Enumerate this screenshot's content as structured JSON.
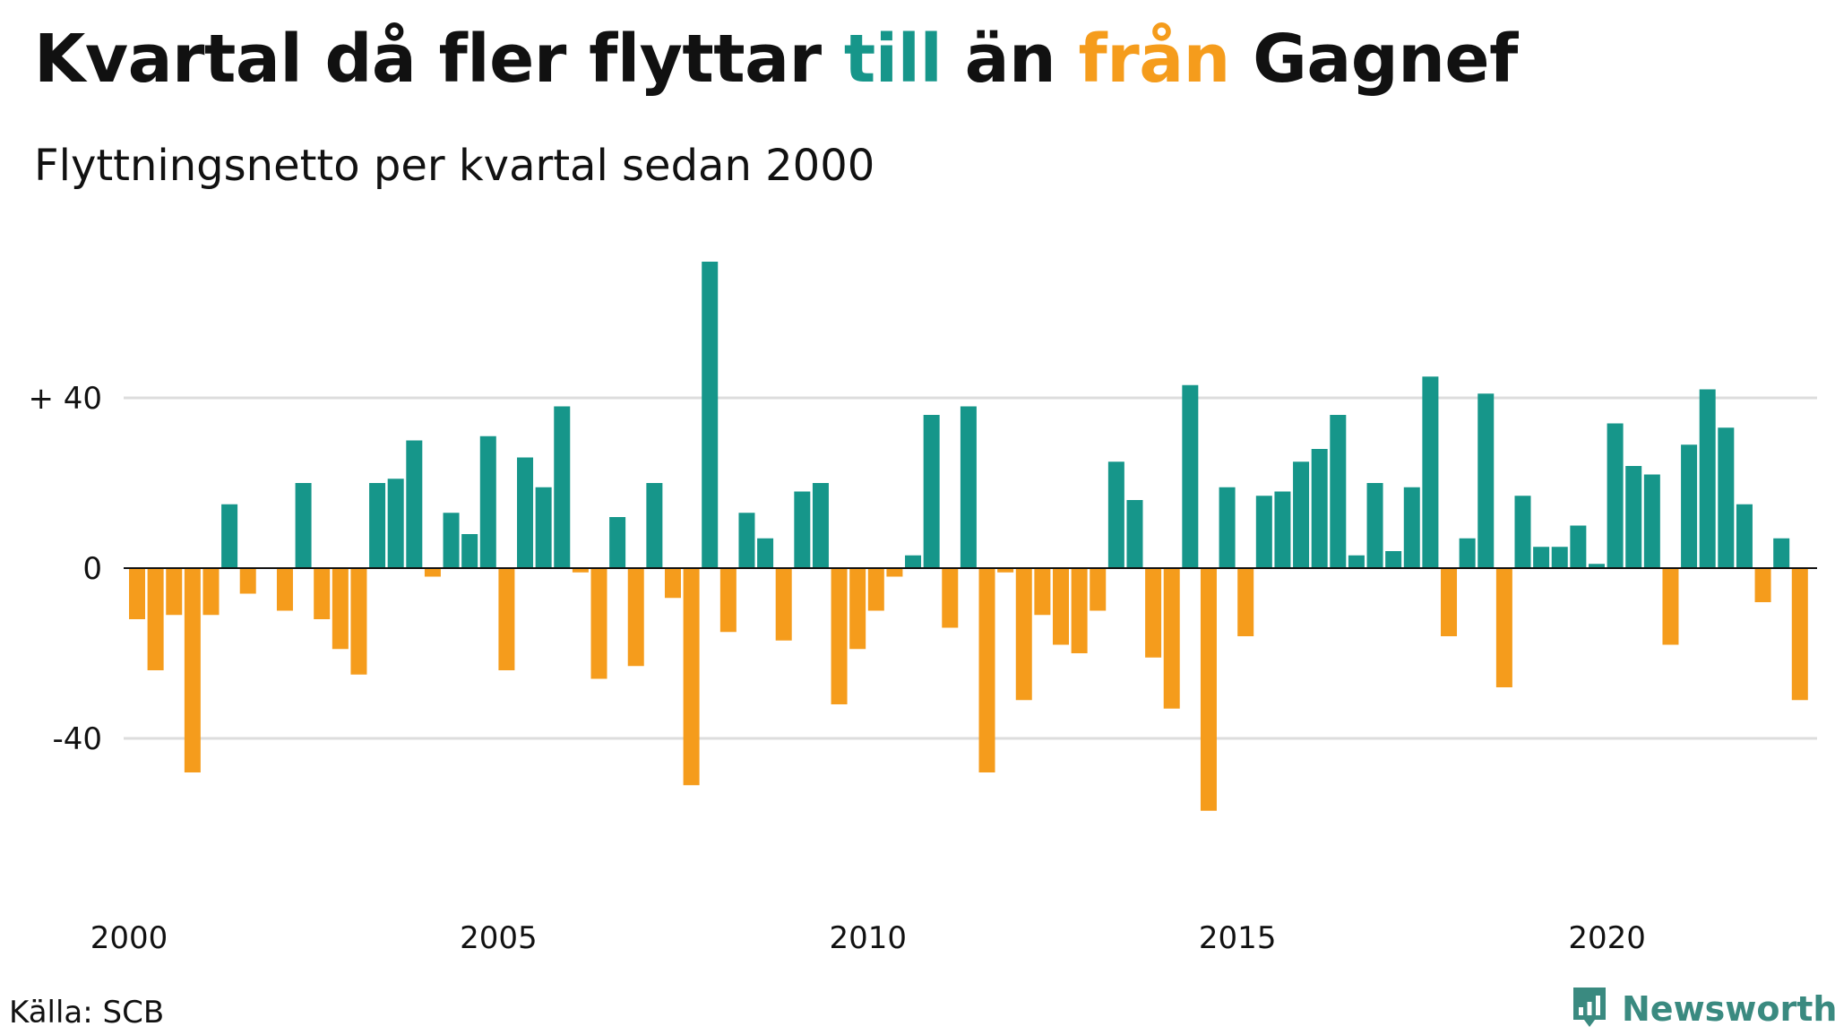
{
  "title": {
    "part1": "Kvartal då fler flyttar",
    "word_to": "till",
    "part2": "än",
    "word_from": "från",
    "part3": "Gagnef"
  },
  "subtitle": "Flyttningsnetto per kvartal sedan 2000",
  "source": "Källa: SCB",
  "brand": "Newsworthy",
  "colors": {
    "positive": "#16968a",
    "negative": "#f59c1c",
    "grid": "#dddddd",
    "axis": "#111111",
    "brand": "#3a8a80"
  },
  "chart_data": {
    "type": "bar",
    "title": "Kvartal då fler flyttar till än från Gagnef",
    "subtitle": "Flyttningsnetto per kvartal sedan 2000",
    "xlabel": "",
    "ylabel": "",
    "ylim": [
      -65,
      75
    ],
    "grid": true,
    "y_ticks": [
      {
        "value": 40,
        "label": "+ 40"
      },
      {
        "value": 0,
        "label": "0"
      },
      {
        "value": -40,
        "label": "-40"
      }
    ],
    "x_ticks": [
      "2000",
      "2005",
      "2010",
      "2015",
      "2020"
    ],
    "categories": [
      "2000K1",
      "2000K2",
      "2000K3",
      "2000K4",
      "2001K1",
      "2001K2",
      "2001K3",
      "2001K4",
      "2002K1",
      "2002K2",
      "2002K3",
      "2002K4",
      "2003K1",
      "2003K2",
      "2003K3",
      "2003K4",
      "2004K1",
      "2004K2",
      "2004K3",
      "2004K4",
      "2005K1",
      "2005K2",
      "2005K3",
      "2005K4",
      "2006K1",
      "2006K2",
      "2006K3",
      "2006K4",
      "2007K1",
      "2007K2",
      "2007K3",
      "2007K4",
      "2008K1",
      "2008K2",
      "2008K3",
      "2008K4",
      "2009K1",
      "2009K2",
      "2009K3",
      "2009K4",
      "2010K1",
      "2010K2",
      "2010K3",
      "2010K4",
      "2011K1",
      "2011K2",
      "2011K3",
      "2011K4",
      "2012K1",
      "2012K2",
      "2012K3",
      "2012K4",
      "2013K1",
      "2013K2",
      "2013K3",
      "2013K4",
      "2014K1",
      "2014K2",
      "2014K3",
      "2014K4",
      "2015K1",
      "2015K2",
      "2015K3",
      "2015K4",
      "2016K1",
      "2016K2",
      "2016K3",
      "2016K4",
      "2017K1",
      "2017K2",
      "2017K3",
      "2017K4",
      "2018K1",
      "2018K2",
      "2018K3",
      "2018K4",
      "2019K1",
      "2019K2",
      "2019K3",
      "2019K4",
      "2020K1",
      "2020K2",
      "2020K3",
      "2020K4",
      "2021K1",
      "2021K2",
      "2021K3",
      "2021K4",
      "2022K1",
      "2022K2",
      "2022K3",
      "2022K4"
    ],
    "values": [
      -12,
      -24,
      -11,
      -48,
      -11,
      15,
      -6,
      0,
      -10,
      20,
      -12,
      -19,
      -25,
      20,
      21,
      30,
      -2,
      13,
      8,
      31,
      -24,
      26,
      19,
      38,
      -1,
      -26,
      12,
      -23,
      20,
      -7,
      -51,
      72,
      -15,
      13,
      7,
      -17,
      18,
      20,
      -32,
      -19,
      -10,
      -2,
      3,
      36,
      -14,
      38,
      -48,
      -1,
      -31,
      -11,
      -18,
      -20,
      -10,
      25,
      16,
      -21,
      -33,
      43,
      -57,
      19,
      -16,
      17,
      18,
      25,
      28,
      36,
      3,
      20,
      4,
      19,
      45,
      -16,
      7,
      41,
      -28,
      17,
      5,
      5,
      10,
      1,
      34,
      24,
      22,
      -18,
      29,
      42,
      33,
      15,
      -8,
      7,
      -31,
      0
    ]
  }
}
